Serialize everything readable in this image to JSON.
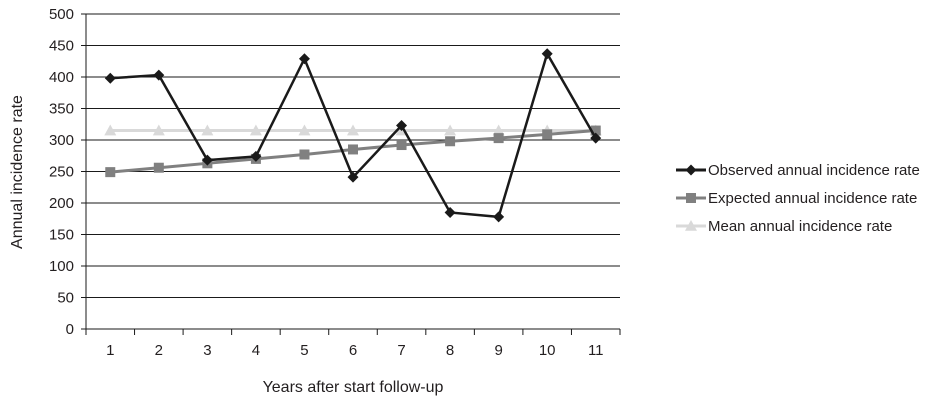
{
  "chart_data": {
    "type": "line",
    "title": "",
    "xlabel": "Years after start follow-up",
    "ylabel": "Annual incidence rate",
    "categories": [
      "1",
      "2",
      "3",
      "4",
      "5",
      "6",
      "7",
      "8",
      "9",
      "10",
      "11"
    ],
    "ylim": [
      0,
      500
    ],
    "yticks": [
      0,
      50,
      100,
      150,
      200,
      250,
      300,
      350,
      400,
      450,
      500
    ],
    "grid": true,
    "legend_position": "right",
    "series": [
      {
        "name": "Observed annual incidence rate",
        "marker": "diamond",
        "color": "#1a1a1a",
        "values": [
          398,
          403,
          268,
          274,
          429,
          241,
          323,
          185,
          178,
          437,
          303
        ]
      },
      {
        "name": "Expected annual incidence rate",
        "marker": "square",
        "color": "#808080",
        "values": [
          249,
          256,
          263,
          270,
          277,
          285,
          292,
          298,
          303,
          309,
          315
        ]
      },
      {
        "name": "Mean annual incidence rate",
        "marker": "triangle",
        "color": "#d9d9d9",
        "values": [
          315,
          315,
          315,
          315,
          315,
          315,
          315,
          315,
          315,
          315,
          315
        ]
      }
    ]
  }
}
